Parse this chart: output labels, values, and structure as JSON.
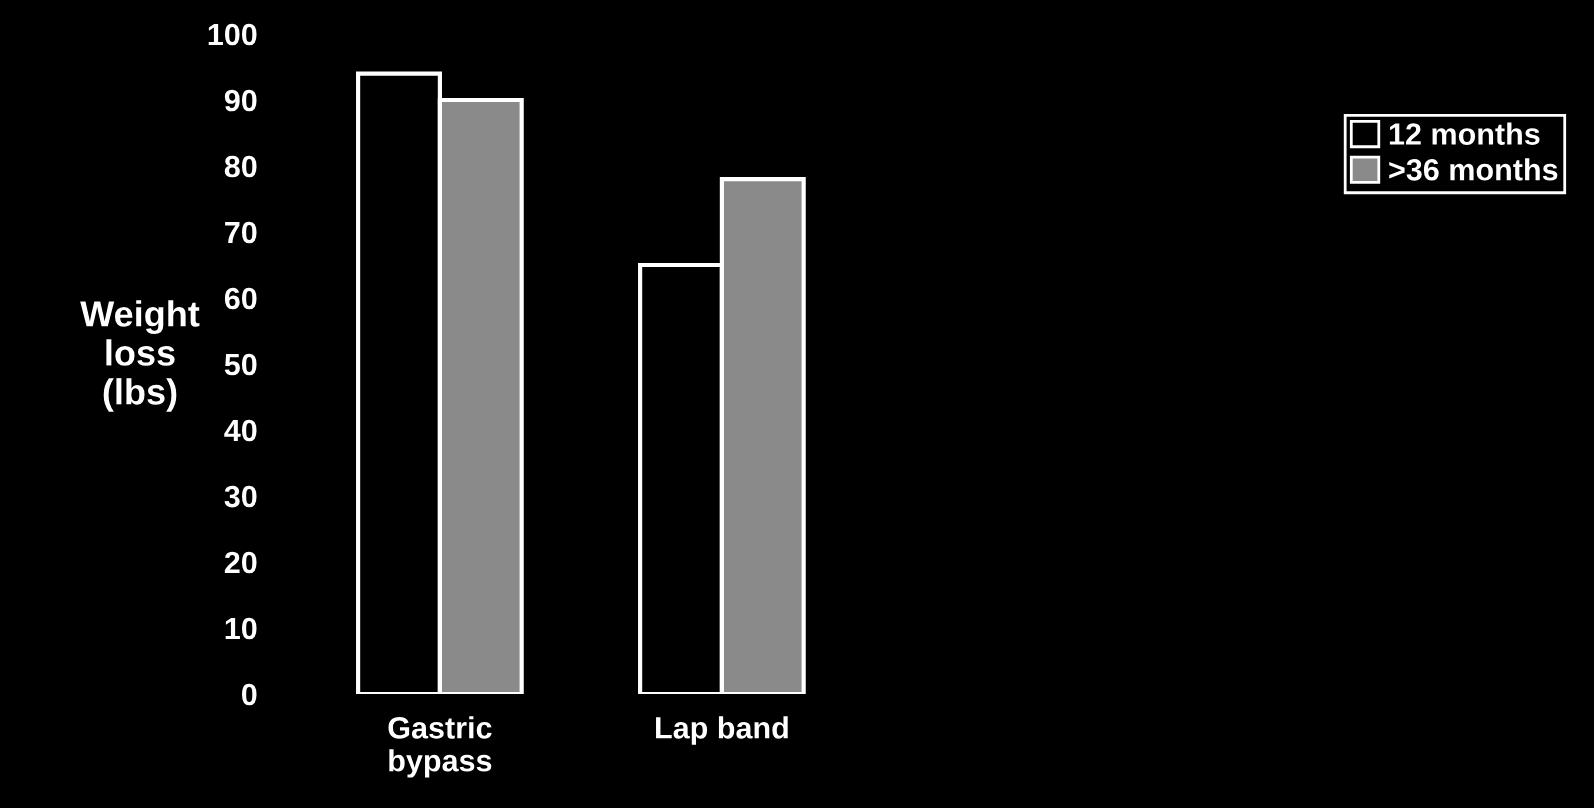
{
  "chart_data": {
    "type": "bar",
    "ylabel": "Weight\nloss\n(lbs)",
    "categories": [
      "Gastric\nbypass",
      "Lap band"
    ],
    "series": [
      {
        "name": "12 months",
        "color": "#000000",
        "values": [
          94,
          65
        ]
      },
      {
        "name": ">36 months",
        "color": "#8a8a8a",
        "values": [
          90,
          78
        ]
      }
    ],
    "ylim": [
      0,
      100
    ],
    "yticks": [
      0,
      10,
      20,
      30,
      40,
      50,
      60,
      70,
      80,
      90,
      100
    ],
    "grid": false,
    "legend": "top right"
  }
}
